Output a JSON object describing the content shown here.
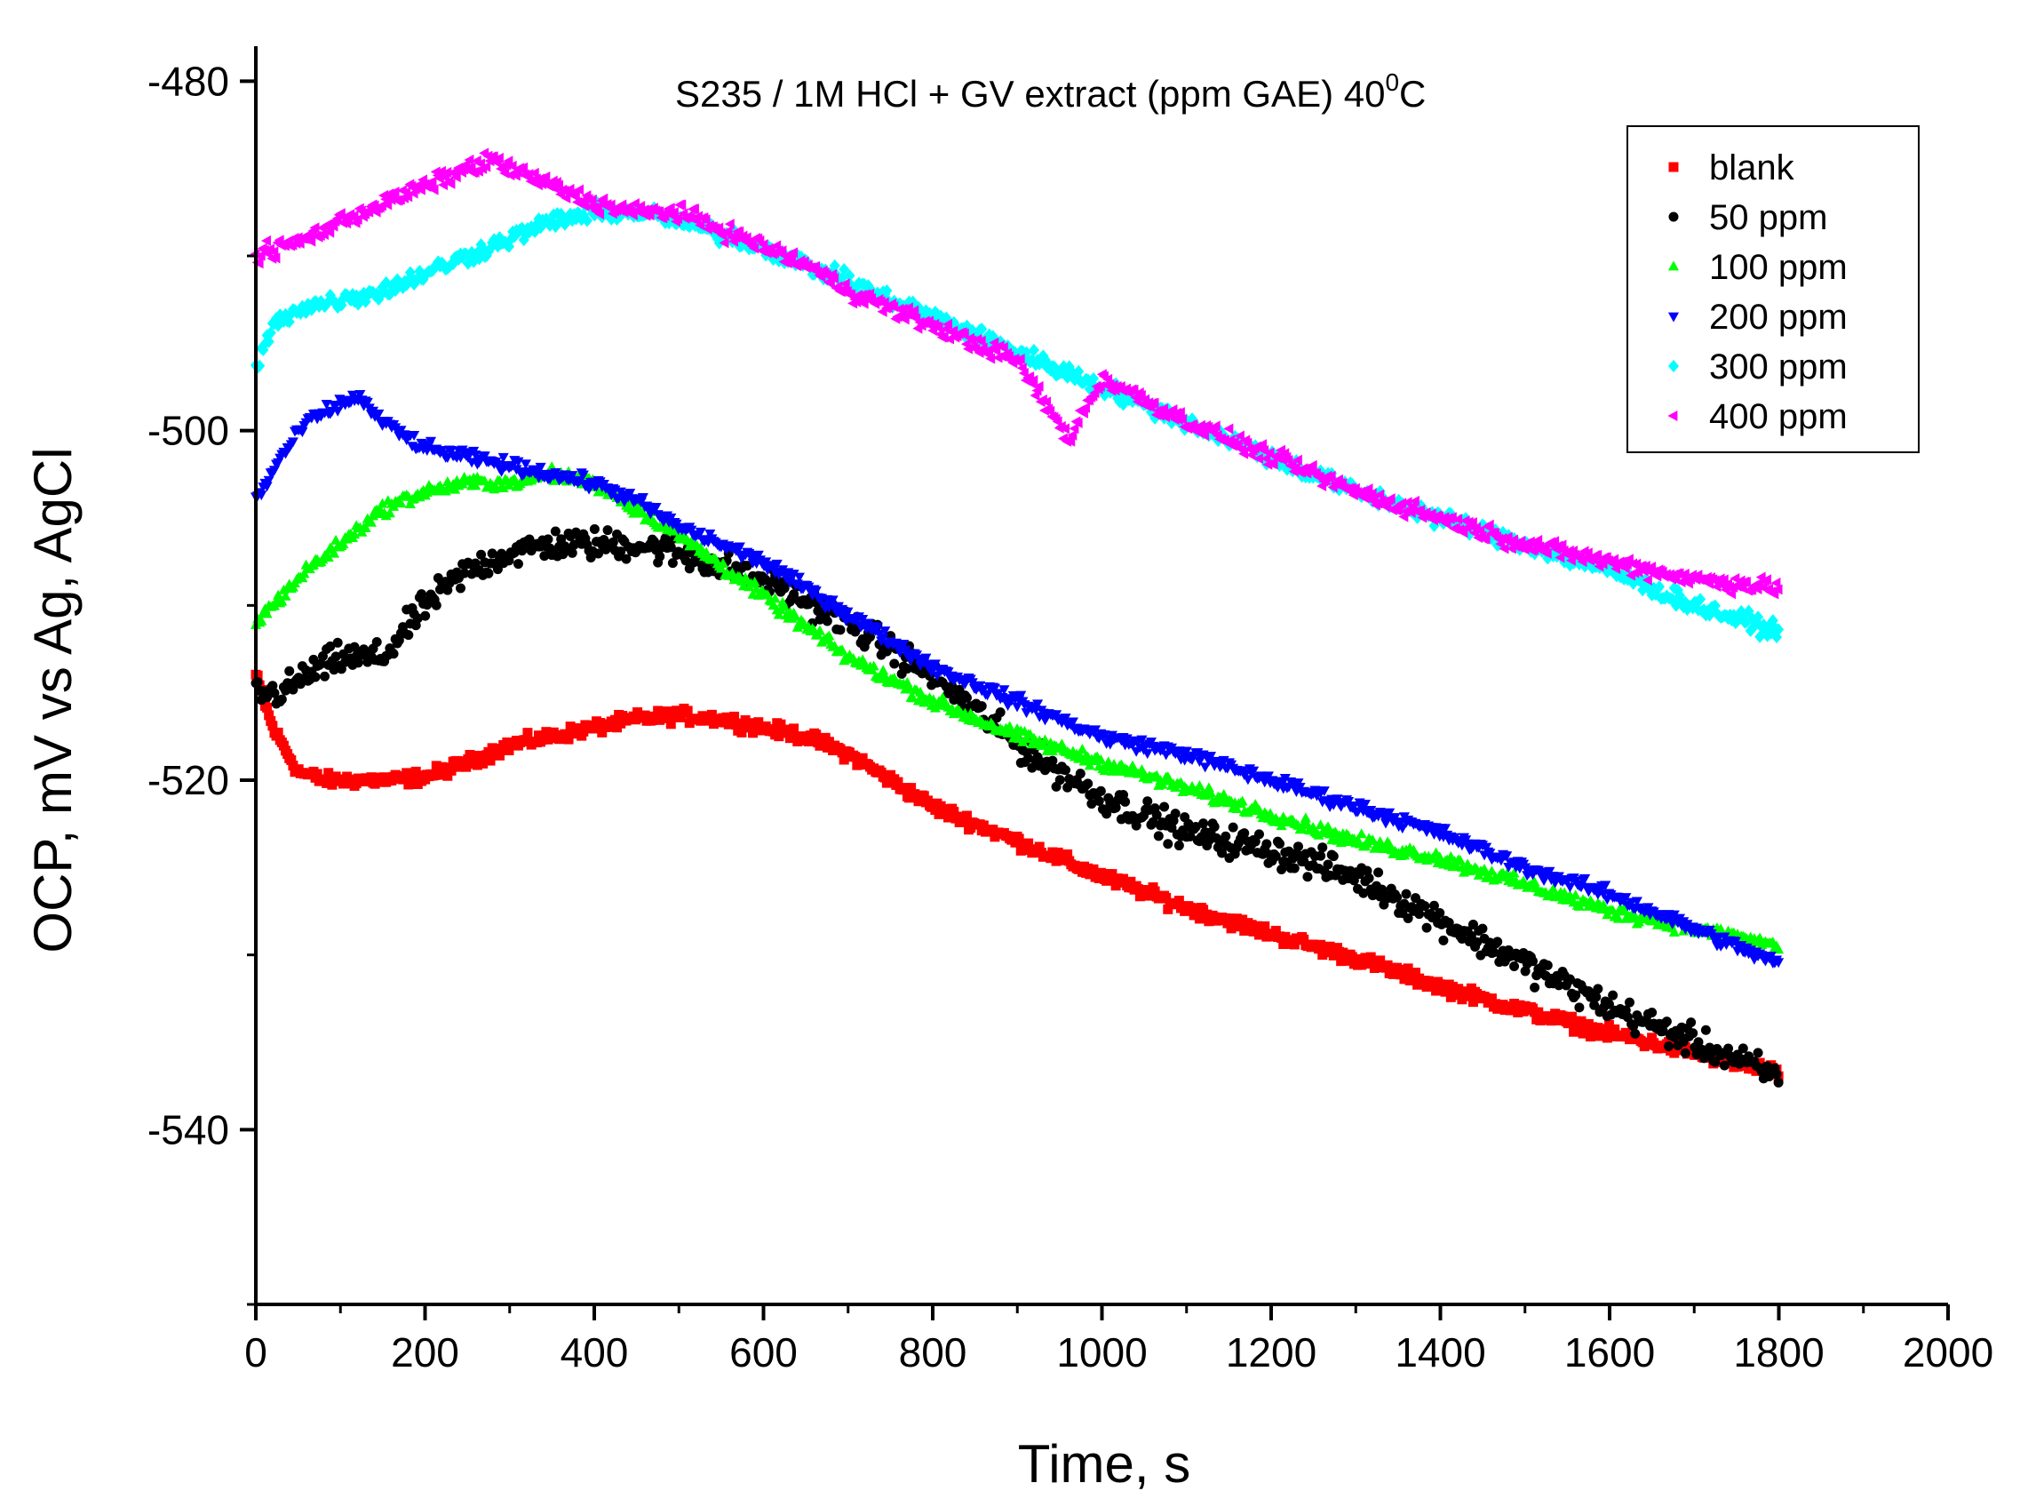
{
  "chart_data": {
    "type": "scatter",
    "title": "S235 / 1M HCl + GV extract (ppm GAE) 40",
    "title_superscript": "0",
    "title_suffix": "C",
    "xlabel": "Time, s",
    "ylabel": "OCP, mV vs Ag, AgCl",
    "xlim": [
      0,
      2000
    ],
    "ylim": [
      -550,
      -478
    ],
    "xticks": [
      0,
      200,
      400,
      600,
      800,
      1000,
      1200,
      1400,
      1600,
      1800,
      2000
    ],
    "xtick_labels": [
      "0",
      "200",
      "400",
      "600",
      "800",
      "1000",
      "1200",
      "1400",
      "1600",
      "1800",
      "2000"
    ],
    "yticks": [
      -480,
      -500,
      -520,
      -540
    ],
    "ytick_labels": [
      "-480",
      "-500",
      "-520",
      "-540"
    ],
    "grid": false,
    "legend_position": "top-right",
    "series": [
      {
        "name": "blank",
        "color": "#ff0000",
        "marker": "square",
        "x": [
          0,
          20,
          50,
          80,
          120,
          160,
          200,
          250,
          300,
          350,
          400,
          450,
          500,
          550,
          600,
          650,
          700,
          750,
          800,
          900,
          1000,
          1100,
          1200,
          1300,
          1400,
          1500,
          1600,
          1700,
          1800
        ],
        "y": [
          -514,
          -517,
          -519.5,
          -520,
          -520,
          -520,
          -519.8,
          -519,
          -518,
          -517.5,
          -517,
          -516.5,
          -516.3,
          -516.5,
          -517,
          -517.5,
          -518.5,
          -520,
          -521.5,
          -523.5,
          -525.5,
          -527.3,
          -528.8,
          -530.2,
          -531.8,
          -533.2,
          -534.5,
          -535.6,
          -536.8
        ]
      },
      {
        "name": " 50 ppm",
        "color": "#000000",
        "marker": "circle",
        "x": [
          0,
          30,
          60,
          100,
          150,
          200,
          250,
          300,
          350,
          400,
          450,
          500,
          600,
          700,
          800,
          900,
          1000,
          1100,
          1200,
          1300,
          1400,
          1500,
          1600,
          1700,
          1800
        ],
        "y": [
          -515,
          -515,
          -514,
          -513,
          -513,
          -510,
          -508,
          -507,
          -506.5,
          -506.5,
          -506.5,
          -507,
          -508.5,
          -511,
          -514,
          -518,
          -521,
          -523,
          -524,
          -525.5,
          -528,
          -530.5,
          -533,
          -535,
          -537
        ]
      },
      {
        "name": "100 ppm",
        "color": "#00ff00",
        "marker": "triangle-up",
        "x": [
          0,
          30,
          60,
          100,
          150,
          200,
          250,
          300,
          350,
          400,
          450,
          500,
          600,
          700,
          800,
          900,
          1000,
          1100,
          1200,
          1300,
          1400,
          1500,
          1600,
          1700,
          1800
        ],
        "y": [
          -511,
          -509.5,
          -508,
          -506.5,
          -504.5,
          -503.5,
          -503,
          -503,
          -502.5,
          -503,
          -504.5,
          -506,
          -509.5,
          -513,
          -515.5,
          -517.5,
          -519,
          -520.5,
          -522,
          -523.5,
          -524.5,
          -526,
          -527.5,
          -528.5,
          -529.5
        ]
      },
      {
        "name": "200 ppm",
        "color": "#0000ff",
        "marker": "triangle-down",
        "x": [
          0,
          30,
          60,
          100,
          120,
          150,
          200,
          250,
          300,
          350,
          400,
          450,
          500,
          600,
          700,
          800,
          900,
          1000,
          1100,
          1200,
          1300,
          1400,
          1500,
          1600,
          1700,
          1800
        ],
        "y": [
          -504,
          -501.5,
          -499.5,
          -498.5,
          -498,
          -499.5,
          -501,
          -501.5,
          -502,
          -502.5,
          -503,
          -504,
          -505.5,
          -507.5,
          -510.5,
          -513.5,
          -515.5,
          -517.5,
          -518.5,
          -520,
          -521.5,
          -523,
          -525,
          -526.5,
          -528.5,
          -530.5
        ]
      },
      {
        "name": "300 ppm",
        "color": "#00ffff",
        "marker": "diamond",
        "x": [
          0,
          20,
          50,
          100,
          150,
          200,
          250,
          300,
          350,
          400,
          450,
          500,
          600,
          700,
          800,
          900,
          1000,
          1100,
          1200,
          1300,
          1400,
          1500,
          1600,
          1700,
          1800
        ],
        "y": [
          -496.5,
          -494,
          -493,
          -492.5,
          -492,
          -491,
          -490,
          -489,
          -488,
          -487.5,
          -487.5,
          -488,
          -489.5,
          -491.5,
          -493.5,
          -495.5,
          -497.5,
          -499.5,
          -501.5,
          -503.5,
          -505,
          -506.5,
          -508,
          -510,
          -511.5
        ]
      },
      {
        "name": "400 ppm",
        "color": "#ff00ff",
        "marker": "triangle-left",
        "x": [
          0,
          30,
          60,
          100,
          150,
          200,
          250,
          280,
          300,
          350,
          400,
          450,
          500,
          550,
          600,
          650,
          700,
          800,
          900,
          960,
          1000,
          1100,
          1200,
          1300,
          1400,
          1500,
          1600,
          1700,
          1800
        ],
        "y": [
          -490,
          -489.5,
          -489,
          -488,
          -487,
          -486,
          -485,
          -484.5,
          -485,
          -486,
          -487,
          -487.5,
          -487.5,
          -488.5,
          -489.5,
          -490.5,
          -492,
          -494,
          -496,
          -500.5,
          -497,
          -499.5,
          -501.5,
          -503.5,
          -505,
          -506.5,
          -507.5,
          -508.5,
          -509
        ]
      }
    ]
  }
}
